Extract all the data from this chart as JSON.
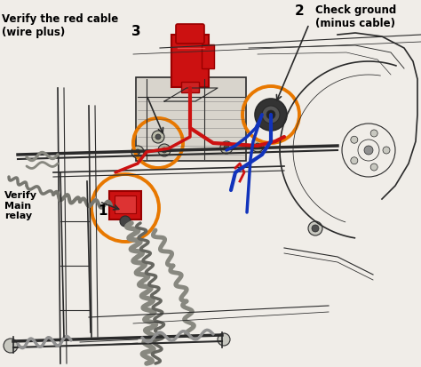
{
  "bg_color": "#f5f5f0",
  "line_color": "#2a2a2a",
  "line_color2": "#444444",
  "red_color": "#cc1111",
  "red_dark": "#990000",
  "blue_color": "#1133bb",
  "blue_light": "#3366cc",
  "orange_color": "#e87800",
  "gray_light": "#c8c8c0",
  "gray_mid": "#909090",
  "gray_dark": "#505050",
  "white": "#ffffff",
  "label1": "Verify\nMain\nrelay",
  "label1_num": "1",
  "label2": "Check ground\n(minus cable)",
  "label2_num": "2",
  "label3_line1": "Verify the red cable",
  "label3_line2": "(wire plus)",
  "label3_num": "3",
  "figsize": [
    4.74,
    4.14
  ],
  "dpi": 100
}
